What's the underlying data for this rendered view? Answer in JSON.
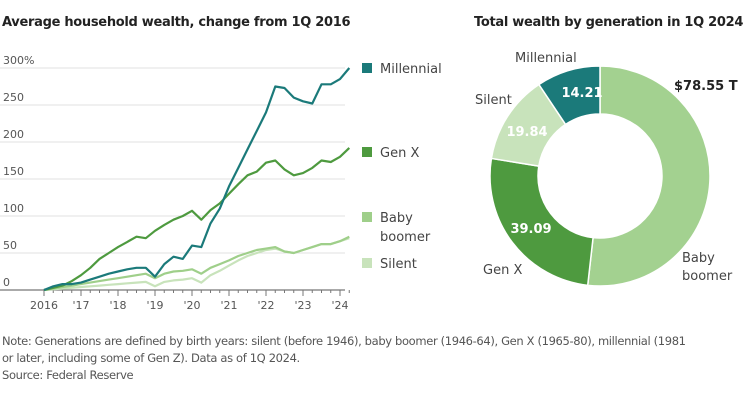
{
  "chart_data": [
    {
      "type": "line",
      "title": "Average household wealth, change from 1Q 2016",
      "xlabel": "",
      "ylabel": "",
      "ylim": [
        0,
        300
      ],
      "yticks": [
        0,
        50,
        100,
        150,
        200,
        250,
        300
      ],
      "ytick_labels": [
        "0",
        "50",
        "100",
        "150",
        "200",
        "250",
        "300%"
      ],
      "xtick_labels": [
        "2016",
        "'17",
        "'18",
        "'19",
        "'20",
        "'21",
        "'22",
        "'23",
        "'24"
      ],
      "x_start": "1Q 2016",
      "x_end": "1Q 2024",
      "x_frequency": "quarterly",
      "grid": true,
      "legend_position": "right",
      "series": [
        {
          "name": "Millennial",
          "color": "#1b7a7a",
          "values": [
            0,
            5,
            8,
            8,
            10,
            14,
            18,
            22,
            25,
            28,
            30,
            30,
            18,
            35,
            45,
            42,
            60,
            58,
            90,
            110,
            140,
            165,
            190,
            215,
            240,
            275,
            273,
            260,
            255,
            252,
            278,
            278,
            285,
            300
          ]
        },
        {
          "name": "Gen X",
          "color": "#4e9a3f",
          "values": [
            0,
            3,
            6,
            12,
            20,
            30,
            42,
            50,
            58,
            65,
            72,
            70,
            80,
            88,
            95,
            100,
            107,
            95,
            108,
            117,
            130,
            143,
            155,
            160,
            172,
            175,
            163,
            155,
            158,
            165,
            175,
            173,
            180,
            192
          ]
        },
        {
          "name": "Baby boomer",
          "color": "#9fcf8a",
          "values": [
            0,
            2,
            4,
            6,
            8,
            10,
            12,
            14,
            16,
            18,
            20,
            22,
            16,
            22,
            25,
            26,
            28,
            22,
            30,
            35,
            40,
            46,
            50,
            54,
            56,
            58,
            52,
            50,
            54,
            58,
            62,
            62,
            66,
            72
          ]
        },
        {
          "name": "Silent",
          "color": "#c8e3bb",
          "values": [
            0,
            1,
            2,
            3,
            4,
            5,
            6,
            7,
            8,
            9,
            10,
            11,
            5,
            11,
            13,
            14,
            16,
            10,
            20,
            26,
            33,
            40,
            46,
            50,
            54,
            56,
            52,
            50,
            54,
            58,
            62,
            62,
            66,
            70
          ]
        }
      ]
    },
    {
      "type": "pie",
      "donut": true,
      "title": "Total wealth by generation in 1Q 2024",
      "unit": "trillion dollars",
      "slices": [
        {
          "name": "Baby boomer",
          "value": 78.55,
          "display": "$78.55 T",
          "color": "#a3d190"
        },
        {
          "name": "Gen X",
          "value": 39.09,
          "display": "39.09",
          "color": "#4e9a3f"
        },
        {
          "name": "Silent",
          "value": 19.84,
          "display": "19.84",
          "color": "#c8e3bb"
        },
        {
          "name": "Millennial",
          "value": 14.21,
          "display": "14.21",
          "color": "#1b7a7a"
        }
      ]
    }
  ],
  "footer": {
    "note_line1": "Note: Generations are defined by birth years: silent (before 1946), baby boomer (1946-64), Gen X (1965-80), millennial (1981",
    "note_line2": "or later, including some of Gen Z). Data as of 1Q 2024.",
    "source": "Source: Federal Reserve"
  }
}
